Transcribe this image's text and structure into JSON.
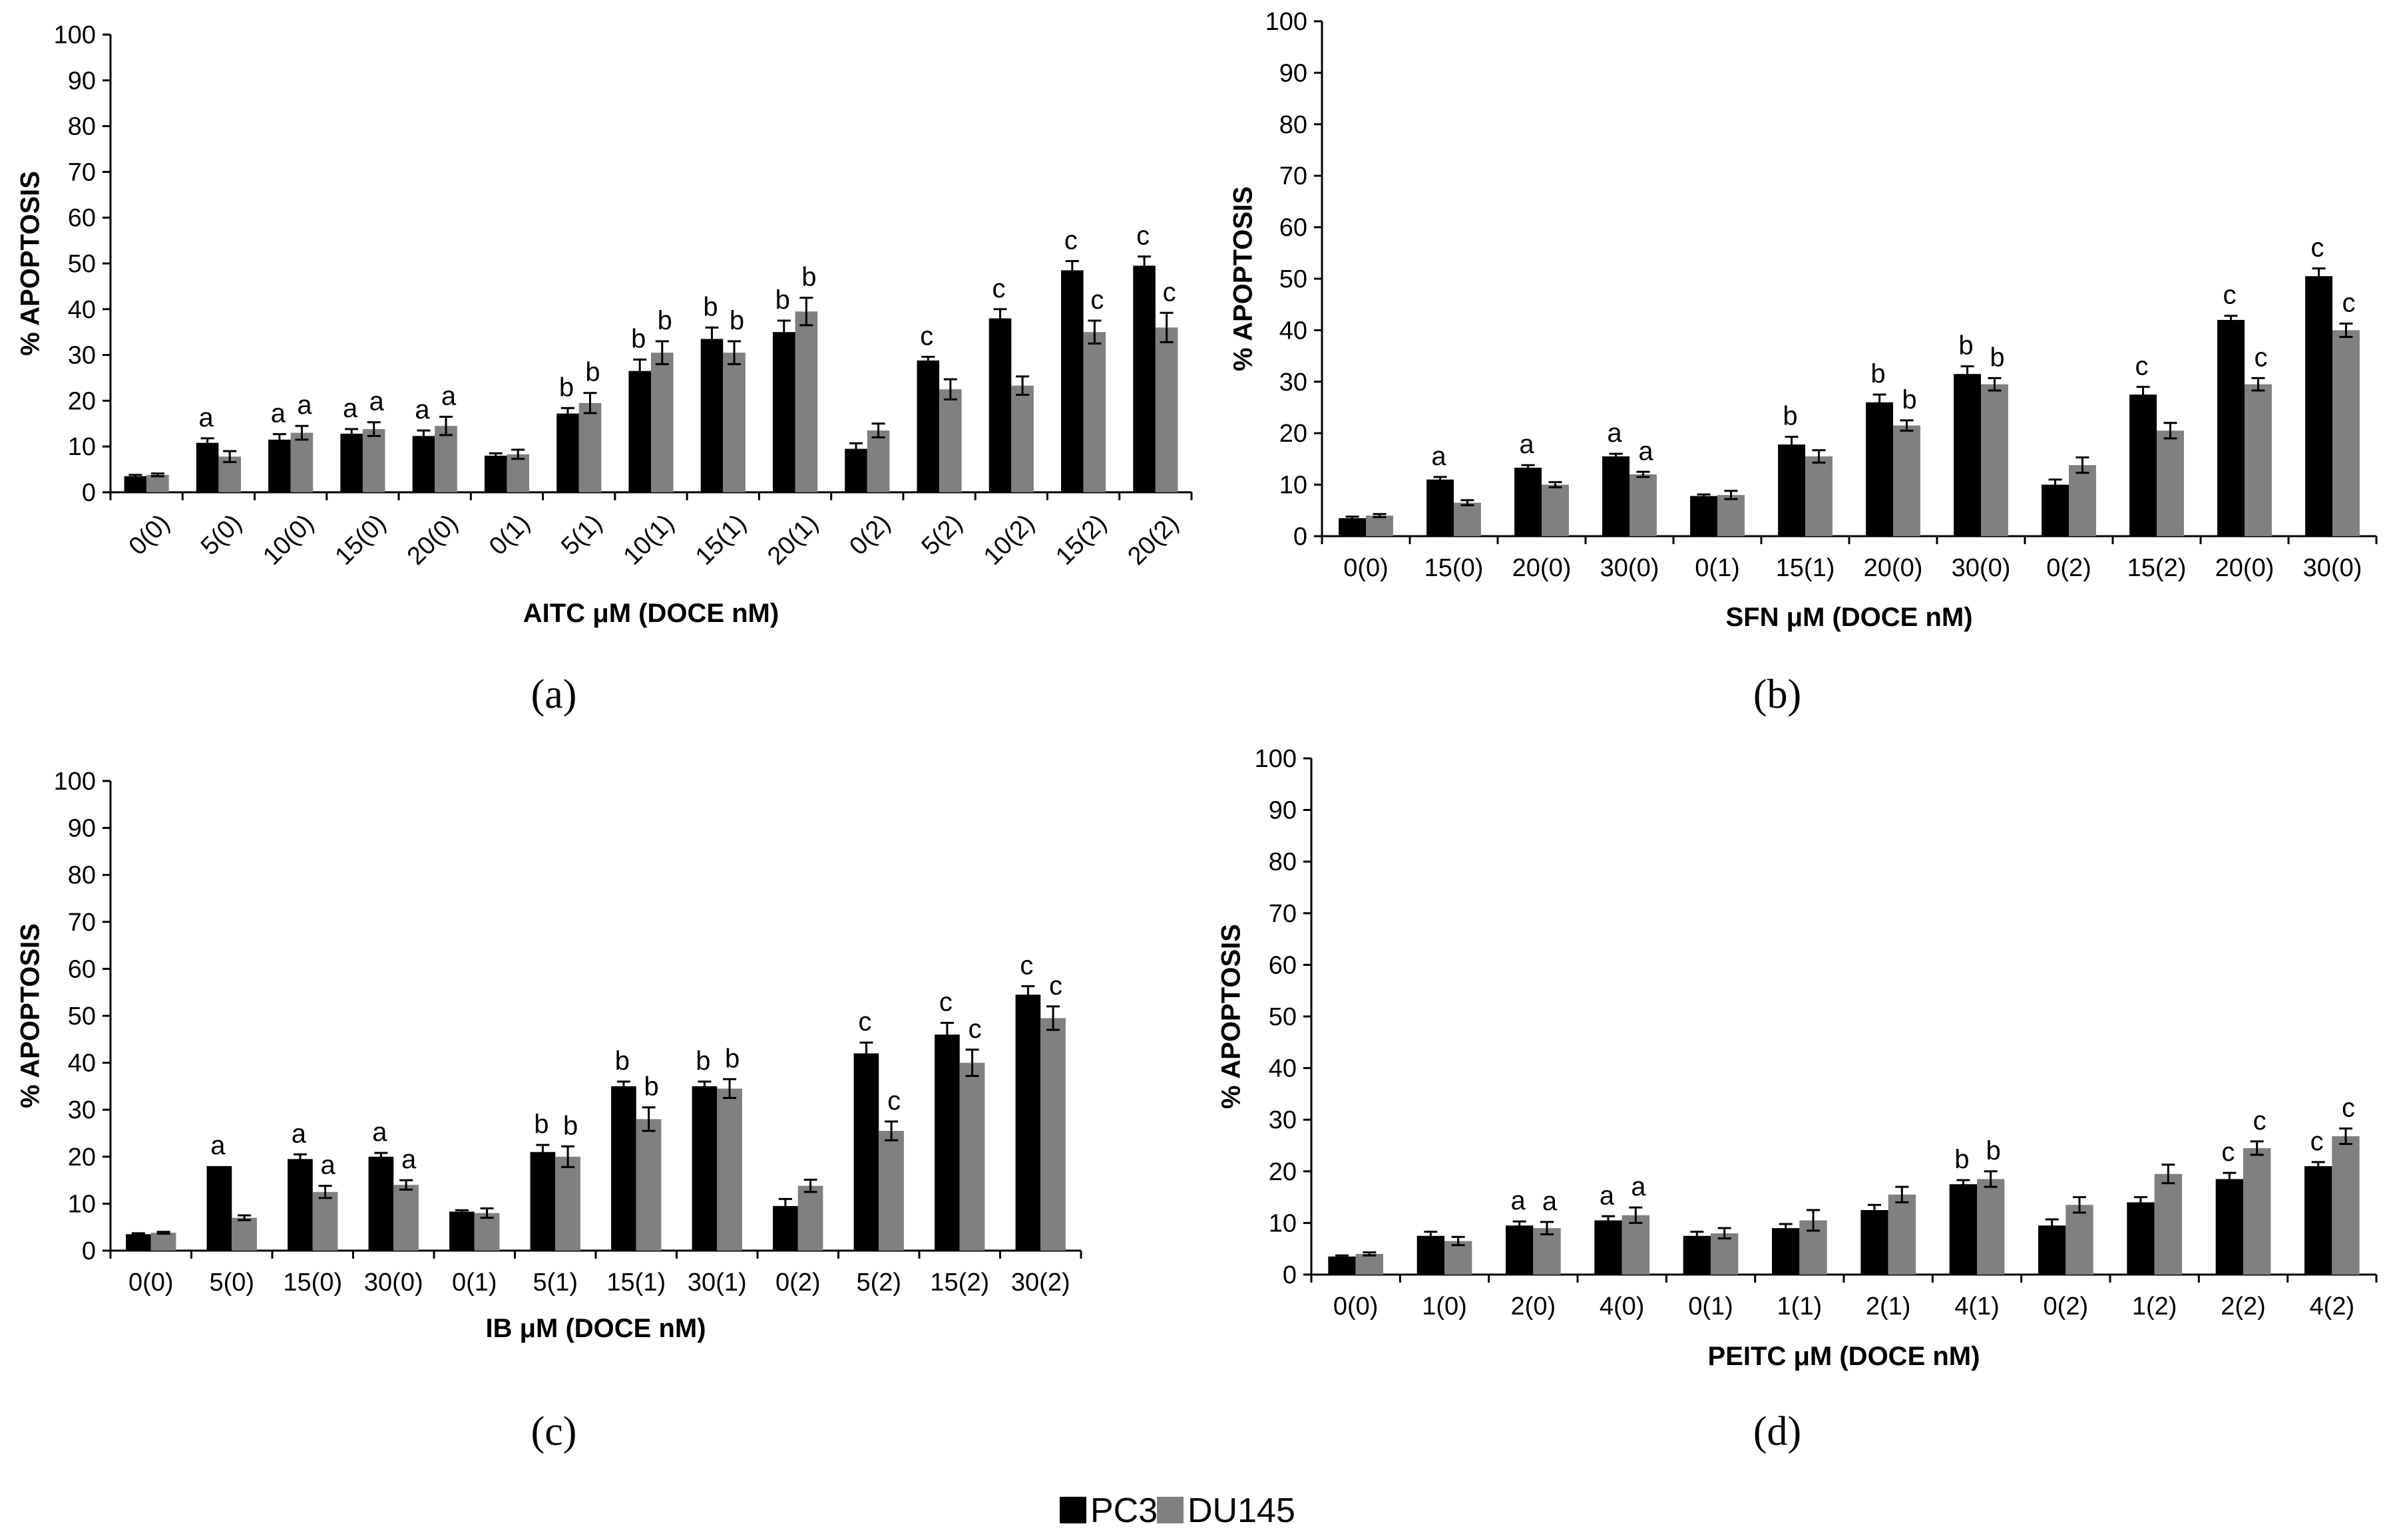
{
  "colors": {
    "PC3": "#000000",
    "DU145": "#808080",
    "axis": "#000000"
  },
  "legend": {
    "items": [
      {
        "name": "PC3",
        "color": "#000000"
      },
      {
        "name": "DU145",
        "color": "#808080"
      }
    ]
  },
  "chart_data": [
    {
      "id": "a",
      "type": "bar",
      "panel_label": "(a)",
      "xlabel": "AITC μM (DOCE nM)",
      "ylabel": "% APOPTOSIS",
      "ylim": [
        0,
        100
      ],
      "yticks": [
        0,
        10,
        20,
        30,
        40,
        50,
        60,
        70,
        80,
        90,
        100
      ],
      "tick_rotation": -45,
      "categories": [
        "0(0)",
        "5(0)",
        "10(0)",
        "15(0)",
        "20(0)",
        "0(1)",
        "5(1)",
        "10(1)",
        "15(1)",
        "20(1)",
        "0(2)",
        "5(2)",
        "10(2)",
        "15(2)",
        "20(2)"
      ],
      "series": [
        {
          "name": "PC3",
          "values": [
            3.5,
            10.8,
            11.5,
            12.8,
            12.3,
            8,
            17.2,
            26.5,
            33.5,
            35,
            9.5,
            28.8,
            38,
            48.5,
            49.5
          ],
          "errors": [
            0.3,
            1,
            1.2,
            1,
            1.2,
            0.5,
            1.2,
            2.5,
            2.5,
            2.5,
            1.2,
            0.8,
            2,
            2,
            2
          ],
          "labels": [
            "",
            "a",
            "a",
            "a",
            "a",
            "",
            "b",
            "b",
            "b",
            "b",
            "",
            "c",
            "c",
            "c",
            "c"
          ]
        },
        {
          "name": "DU145",
          "values": [
            3.8,
            7.8,
            13,
            13.8,
            14.5,
            8.3,
            19.5,
            30.5,
            30.5,
            39.5,
            13.5,
            22.5,
            23.3,
            35,
            36
          ],
          "errors": [
            0.3,
            1.2,
            1.5,
            1.5,
            2,
            1,
            2.2,
            2.5,
            2.5,
            3,
            1.5,
            2.2,
            2,
            2.5,
            3.2
          ],
          "labels": [
            "",
            "",
            "a",
            "a",
            "a",
            "",
            "b",
            "b",
            "b",
            "b",
            "",
            "",
            "",
            "c",
            "c"
          ]
        }
      ]
    },
    {
      "id": "b",
      "type": "bar",
      "panel_label": "(b)",
      "xlabel": "SFN μM (DOCE  nM)",
      "ylabel": "% APOPTOSIS",
      "ylim": [
        0,
        100
      ],
      "yticks": [
        0,
        10,
        20,
        30,
        40,
        50,
        60,
        70,
        80,
        90,
        100
      ],
      "tick_rotation": 0,
      "categories": [
        "0(0)",
        "15(0)",
        "20(0)",
        "30(0)",
        "0(1)",
        "15(1)",
        "20(0)",
        "30(0)",
        "0(2)",
        "15(2)",
        "20(0)",
        "30(0)"
      ],
      "series": [
        {
          "name": "PC3",
          "values": [
            3.5,
            11,
            13.3,
            15.5,
            7.8,
            17.8,
            26,
            31.5,
            10,
            27.5,
            42,
            50.5
          ],
          "errors": [
            0.3,
            0.5,
            0.5,
            0.5,
            0.3,
            1.5,
            1.5,
            1.5,
            1,
            1.5,
            0.8,
            1.5
          ],
          "labels": [
            "",
            "a",
            "a",
            "a",
            "",
            "b",
            "b",
            "b",
            "",
            "c",
            "c",
            "c"
          ]
        },
        {
          "name": "DU145",
          "values": [
            4,
            6.5,
            10,
            12,
            8,
            15.5,
            21.5,
            29.5,
            13.8,
            20.5,
            29.5,
            40
          ],
          "errors": [
            0.3,
            0.5,
            0.5,
            0.5,
            0.8,
            1.2,
            1,
            1.2,
            1.5,
            1.5,
            1.2,
            1.3
          ],
          "labels": [
            "",
            "",
            "",
            "a",
            "",
            "",
            "b",
            "b",
            "",
            "",
            "c",
            "c"
          ]
        }
      ]
    },
    {
      "id": "c",
      "type": "bar",
      "panel_label": "(c)",
      "xlabel": "IB μM (DOCE  nM)",
      "ylabel": "% APOPTOSIS",
      "ylim": [
        0,
        100
      ],
      "yticks": [
        0,
        10,
        20,
        30,
        40,
        50,
        60,
        70,
        80,
        90,
        100
      ],
      "tick_rotation": 0,
      "categories": [
        "0(0)",
        "5(0)",
        "15(0)",
        "30(0)",
        "0(1)",
        "5(1)",
        "15(1)",
        "30(1)",
        "0(2)",
        "5(2)",
        "15(2)",
        "30(2)"
      ],
      "series": [
        {
          "name": "PC3",
          "values": [
            3.5,
            18,
            19.5,
            20,
            8.3,
            21,
            35,
            35,
            9.5,
            42,
            46,
            54.5
          ],
          "errors": [
            0.2,
            0,
            1,
            0.8,
            0.3,
            1.5,
            1,
            1,
            1.5,
            2.3,
            2.5,
            1.8
          ],
          "labels": [
            "",
            "a",
            "a",
            "a",
            "",
            "b",
            "b",
            "b",
            "",
            "c",
            "c",
            "c"
          ]
        },
        {
          "name": "DU145",
          "values": [
            3.8,
            7,
            12.5,
            14,
            8,
            20,
            28,
            34.5,
            13.8,
            25.5,
            40,
            49.5
          ],
          "errors": [
            0.2,
            0.5,
            1.3,
            1,
            1,
            2.2,
            2.5,
            2,
            1.3,
            2,
            2.8,
            2.5
          ],
          "labels": [
            "",
            "",
            "a",
            "a",
            "",
            "b",
            "b",
            "b",
            "",
            "c",
            "c",
            "c"
          ]
        }
      ]
    },
    {
      "id": "d",
      "type": "bar",
      "panel_label": "(d)",
      "xlabel": "PEITC μM (DOCE  nM)",
      "ylabel": "% APOPTOSIS",
      "ylim": [
        0,
        100
      ],
      "yticks": [
        0,
        10,
        20,
        30,
        40,
        50,
        60,
        70,
        80,
        90,
        100
      ],
      "tick_rotation": 0,
      "categories": [
        "0(0)",
        "1(0)",
        "2(0)",
        "4(0)",
        "0(1)",
        "1(1)",
        "2(1)",
        "4(1)",
        "0(2)",
        "1(2)",
        "2(2)",
        "4(2)"
      ],
      "series": [
        {
          "name": "PC3",
          "values": [
            3.5,
            7.5,
            9.5,
            10.5,
            7.5,
            9,
            12.5,
            17.5,
            9.5,
            14,
            18.5,
            21
          ],
          "errors": [
            0.2,
            0.8,
            0.8,
            0.8,
            0.8,
            0.8,
            1,
            0.8,
            1.2,
            1,
            1.2,
            0.8
          ],
          "labels": [
            "",
            "",
            "a",
            "a",
            "",
            "",
            "",
            "b",
            "",
            "",
            "c",
            "c"
          ]
        },
        {
          "name": "DU145",
          "values": [
            4,
            6.5,
            9,
            11.5,
            8,
            10.5,
            15.5,
            18.5,
            13.5,
            19.5,
            24.5,
            26.8
          ],
          "errors": [
            0.3,
            0.8,
            1.2,
            1.5,
            1,
            2,
            1.5,
            1.5,
            1.5,
            1.8,
            1.3,
            1.5
          ],
          "labels": [
            "",
            "",
            "a",
            "a",
            "",
            "",
            "",
            "b",
            "",
            "",
            "c",
            "c"
          ]
        }
      ]
    }
  ]
}
